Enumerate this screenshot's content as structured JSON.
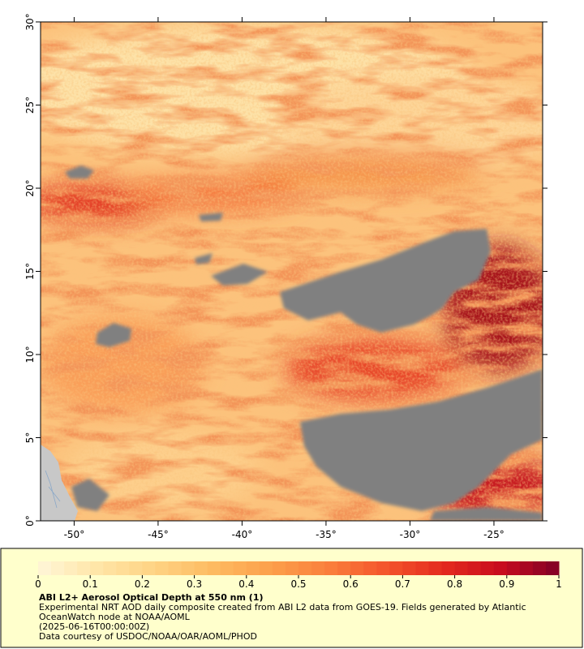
{
  "chart_data": {
    "type": "map",
    "xlim": [
      -52,
      -22.1
    ],
    "ylim": [
      0,
      30
    ],
    "xticks": [
      {
        "value": -50,
        "label": "-50°"
      },
      {
        "value": -45,
        "label": "-45°"
      },
      {
        "value": -40,
        "label": "-40°"
      },
      {
        "value": -35,
        "label": "-35°"
      },
      {
        "value": -30,
        "label": "-30°"
      },
      {
        "value": -25,
        "label": "-25°"
      }
    ],
    "yticks": [
      {
        "value": 0,
        "label": "0°"
      },
      {
        "value": 5,
        "label": "5°"
      },
      {
        "value": 10,
        "label": "10°"
      },
      {
        "value": 15,
        "label": "15°"
      },
      {
        "value": 20,
        "label": "20°"
      },
      {
        "value": 25,
        "label": "25°"
      },
      {
        "value": 30,
        "label": "30°"
      }
    ]
  },
  "colorbar": {
    "lim": [
      0,
      1
    ],
    "ticks": [
      0,
      0.1,
      0.2,
      0.3,
      0.4,
      0.5,
      0.6,
      0.7,
      0.8,
      0.9,
      1
    ],
    "colors": [
      "#fff6d8",
      "#ffe6a8",
      "#fed384",
      "#fdbb62",
      "#fca04c",
      "#fa803c",
      "#f4552c",
      "#e42a1e",
      "#c80c1e",
      "#800026"
    ]
  },
  "caption": {
    "title": "ABI L2+ Aerosol Optical Depth at 550 nm (1)",
    "description": "Experimental NRT AOD daily composite created from ABI L2 data from GOES-19. Fields generated by Atlantic OceanWatch node at NOAA/AOML",
    "time": "(2025-06-16T00:00:00Z)",
    "credit": "Data courtesy of USDOC/NOAA/OAR/AOML/PHOD"
  }
}
